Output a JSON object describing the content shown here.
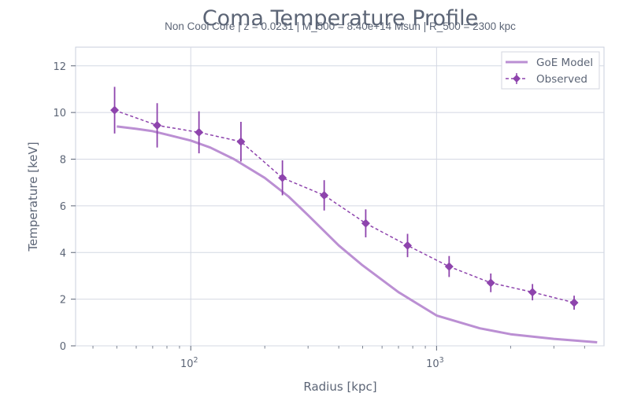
{
  "chart_data": {
    "type": "line",
    "title": "Coma Temperature Profile",
    "subtitle": "Non Cool Core | z = 0.0231 | M_500 = 8.40e+14 Msun | R_500 = 2300 kpc",
    "xlabel": "Radius [kpc]",
    "ylabel": "Temperature [keV]",
    "xscale": "log",
    "xlim": [
      34,
      4800
    ],
    "ylim": [
      0,
      12.8
    ],
    "yticks": [
      0,
      2,
      4,
      6,
      8,
      10,
      12
    ],
    "xticks_major": [
      {
        "value": 100,
        "base": "10",
        "exp": "2"
      },
      {
        "value": 1000,
        "base": "10",
        "exp": "3"
      }
    ],
    "grid": true,
    "legend_position": "top-right",
    "series": [
      {
        "name": "GoE Model",
        "style": "solid",
        "color": "#bb8fd3",
        "x": [
          50,
          60,
          70,
          80,
          100,
          120,
          150,
          200,
          250,
          300,
          400,
          500,
          700,
          1000,
          1500,
          2000,
          3000,
          4500
        ],
        "y": [
          9.4,
          9.3,
          9.2,
          9.05,
          8.8,
          8.5,
          8.0,
          7.2,
          6.4,
          5.6,
          4.3,
          3.45,
          2.3,
          1.3,
          0.75,
          0.5,
          0.3,
          0.15
        ]
      },
      {
        "name": "Observed",
        "style": "dashed",
        "marker": "diamond",
        "color": "#8e44ad",
        "x": [
          49,
          73,
          108,
          160,
          236,
          349,
          515,
          762,
          1125,
          1662,
          2456,
          3628
        ],
        "y": [
          10.1,
          9.45,
          9.15,
          8.75,
          7.2,
          6.45,
          5.25,
          4.3,
          3.4,
          2.7,
          2.3,
          1.85
        ],
        "yerr": [
          1.0,
          0.95,
          0.9,
          0.85,
          0.75,
          0.65,
          0.6,
          0.5,
          0.45,
          0.4,
          0.35,
          0.3
        ]
      }
    ]
  }
}
